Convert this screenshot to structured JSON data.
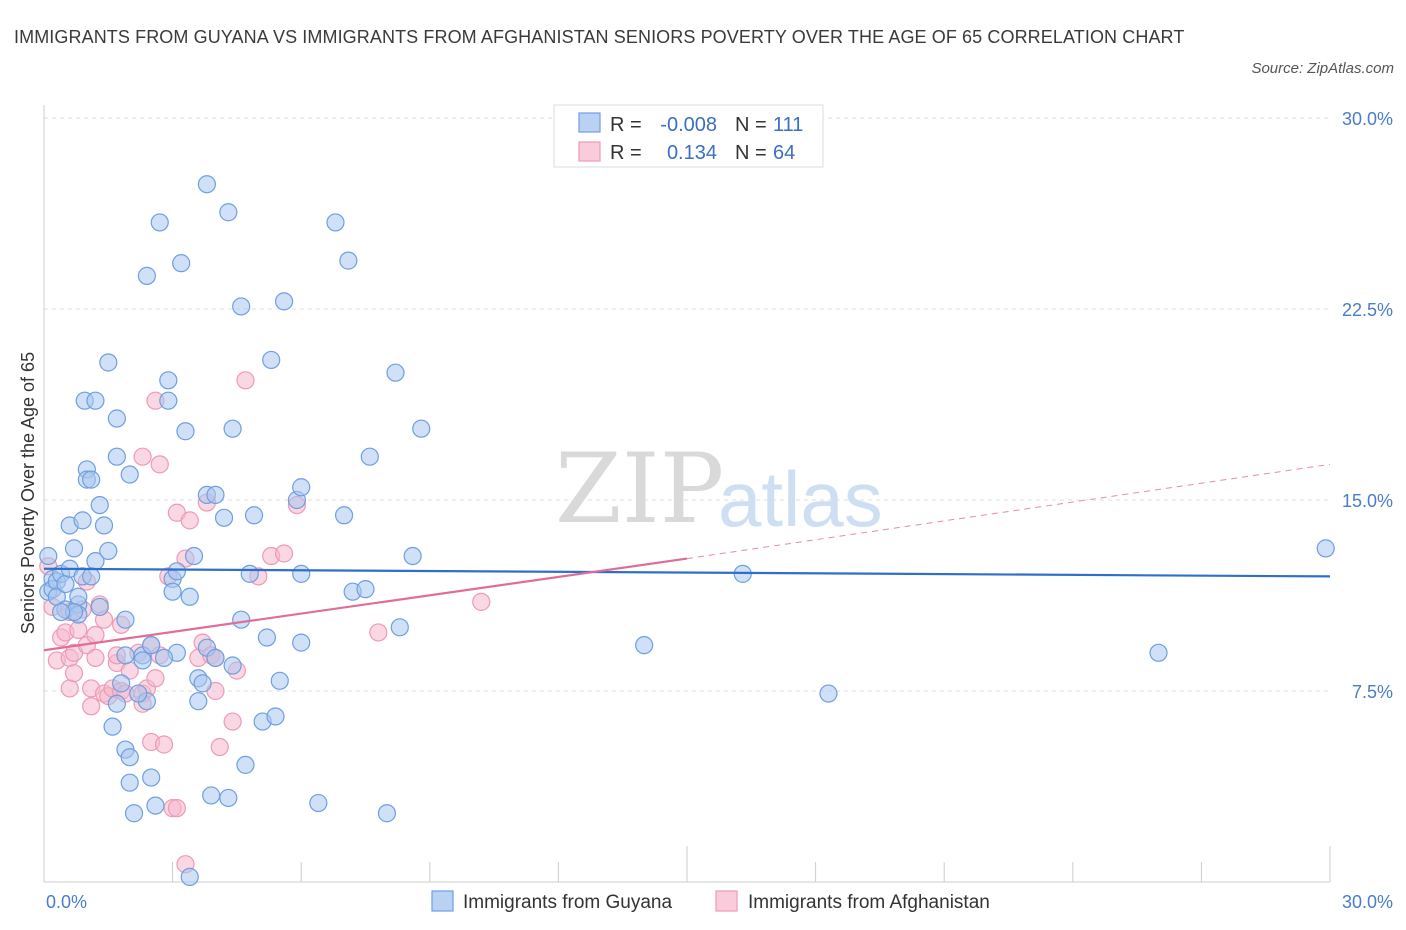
{
  "title": "IMMIGRANTS FROM GUYANA VS IMMIGRANTS FROM AFGHANISTAN SENIORS POVERTY OVER THE AGE OF 65 CORRELATION CHART",
  "source": "Source: ZipAtlas.com",
  "watermark": {
    "zip": "ZIP",
    "atlas": "atlas"
  },
  "legend": {
    "guyana": {
      "r_label": "R =",
      "r_value": "-0.008",
      "n_label": "N =",
      "n_value": "111"
    },
    "afghanistan": {
      "r_label": "R =",
      "r_value": "0.134",
      "n_label": "N =",
      "n_value": "64"
    }
  },
  "bottom_legend": {
    "guyana": "Immigrants from Guyana",
    "afghanistan": "Immigrants from Afghanistan"
  },
  "colors": {
    "guyana_fill": "#a9c6ef",
    "guyana_stroke": "#6e9fe0",
    "guyana_line": "#2f6fcc",
    "afghanistan_fill": "#f5b8cc",
    "afghanistan_stroke": "#ee9ab5",
    "afghanistan_line": "#e06d97",
    "grid": "#dddddd",
    "tick_text": "#4a7cc9"
  },
  "chart_data": {
    "type": "scatter",
    "title": "IMMIGRANTS FROM GUYANA VS IMMIGRANTS FROM AFGHANISTAN SENIORS POVERTY OVER THE AGE OF 65 CORRELATION CHART",
    "xlabel": "",
    "ylabel": "Seniors Poverty Over the Age of 65",
    "xlim": [
      0,
      30
    ],
    "ylim": [
      0,
      30
    ],
    "x_tick_labels": [
      "0.0%",
      "30.0%"
    ],
    "y_ticks": [
      7.5,
      15.0,
      22.5,
      30.0
    ],
    "y_tick_labels": [
      "7.5%",
      "15.0%",
      "22.5%",
      "30.0%"
    ],
    "grid": true,
    "legend_position": "top-center",
    "series": [
      {
        "name": "Immigrants from Guyana",
        "trend": {
          "x": [
            0,
            30
          ],
          "y": [
            12.3,
            12.0
          ],
          "style": "solid"
        },
        "points": [
          [
            0.1,
            12.8
          ],
          [
            0.1,
            11.4
          ],
          [
            0.2,
            11.9
          ],
          [
            0.2,
            11.5
          ],
          [
            0.3,
            11.8
          ],
          [
            0.3,
            11.2
          ],
          [
            0.4,
            12.1
          ],
          [
            0.5,
            10.7
          ],
          [
            0.5,
            11.7
          ],
          [
            0.6,
            14.0
          ],
          [
            0.6,
            12.3
          ],
          [
            0.7,
            13.1
          ],
          [
            0.8,
            10.9
          ],
          [
            0.8,
            10.5
          ],
          [
            0.8,
            11.2
          ],
          [
            0.9,
            14.2
          ],
          [
            0.9,
            12.0
          ],
          [
            0.95,
            18.9
          ],
          [
            1.0,
            16.2
          ],
          [
            1.0,
            15.8
          ],
          [
            1.1,
            15.8
          ],
          [
            1.2,
            18.9
          ],
          [
            1.2,
            12.6
          ],
          [
            1.3,
            14.8
          ],
          [
            1.4,
            14.0
          ],
          [
            1.5,
            13.0
          ],
          [
            1.5,
            20.4
          ],
          [
            1.7,
            16.7
          ],
          [
            1.7,
            18.2
          ],
          [
            1.9,
            10.3
          ],
          [
            2.0,
            16.0
          ],
          [
            1.8,
            7.8
          ],
          [
            1.9,
            5.2
          ],
          [
            2.0,
            4.9
          ],
          [
            2.0,
            3.9
          ],
          [
            2.1,
            2.7
          ],
          [
            1.9,
            8.9
          ],
          [
            1.7,
            7.0
          ],
          [
            1.6,
            6.1
          ],
          [
            2.3,
            8.9
          ],
          [
            2.3,
            8.7
          ],
          [
            2.4,
            7.1
          ],
          [
            2.5,
            9.3
          ],
          [
            2.4,
            23.8
          ],
          [
            2.5,
            4.1
          ],
          [
            2.6,
            3.0
          ],
          [
            2.7,
            25.9
          ],
          [
            2.9,
            19.7
          ],
          [
            2.9,
            18.9
          ],
          [
            3.0,
            11.9
          ],
          [
            3.0,
            11.4
          ],
          [
            3.1,
            12.2
          ],
          [
            3.2,
            24.3
          ],
          [
            3.4,
            11.2
          ],
          [
            3.3,
            17.7
          ],
          [
            3.4,
            0.2
          ],
          [
            3.5,
            12.8
          ],
          [
            3.6,
            8.0
          ],
          [
            3.6,
            7.1
          ],
          [
            3.7,
            7.8
          ],
          [
            3.8,
            15.2
          ],
          [
            3.8,
            9.2
          ],
          [
            3.9,
            3.4
          ],
          [
            4.0,
            8.8
          ],
          [
            4.0,
            15.2
          ],
          [
            3.8,
            27.4
          ],
          [
            4.2,
            14.3
          ],
          [
            4.3,
            26.3
          ],
          [
            4.3,
            3.3
          ],
          [
            4.4,
            8.5
          ],
          [
            4.4,
            17.8
          ],
          [
            4.6,
            22.6
          ],
          [
            4.6,
            10.3
          ],
          [
            4.7,
            4.6
          ],
          [
            4.8,
            12.1
          ],
          [
            4.9,
            14.4
          ],
          [
            5.1,
            6.3
          ],
          [
            5.2,
            9.6
          ],
          [
            5.3,
            20.5
          ],
          [
            5.4,
            6.5
          ],
          [
            5.5,
            7.9
          ],
          [
            5.6,
            22.8
          ],
          [
            5.9,
            15.0
          ],
          [
            6.0,
            15.5
          ],
          [
            6.0,
            9.4
          ],
          [
            6.0,
            12.1
          ],
          [
            6.8,
            25.9
          ],
          [
            6.4,
            3.1
          ],
          [
            7.0,
            14.4
          ],
          [
            7.1,
            24.4
          ],
          [
            7.2,
            11.4
          ],
          [
            7.5,
            11.5
          ],
          [
            7.6,
            16.7
          ],
          [
            8.0,
            2.7
          ],
          [
            8.2,
            20.0
          ],
          [
            8.3,
            10.0
          ],
          [
            8.6,
            12.8
          ],
          [
            8.8,
            17.8
          ],
          [
            14.0,
            9.3
          ],
          [
            16.3,
            12.1
          ],
          [
            18.3,
            7.4
          ],
          [
            26.0,
            9.0
          ],
          [
            29.9,
            13.1
          ],
          [
            0.7,
            10.6
          ],
          [
            1.3,
            10.8
          ],
          [
            2.2,
            7.4
          ],
          [
            1.1,
            12.0
          ],
          [
            3.1,
            9.0
          ],
          [
            2.8,
            8.8
          ],
          [
            0.4,
            10.6
          ]
        ]
      },
      {
        "name": "Immigrants from Afghanistan",
        "trend": {
          "x": [
            0,
            15.0
          ],
          "y": [
            9.1,
            12.7
          ],
          "style": "solid",
          "extension": {
            "x": [
              15.0,
              30
            ],
            "y": [
              12.7,
              16.4
            ],
            "style": "dashed"
          }
        },
        "points": [
          [
            0.1,
            12.4
          ],
          [
            0.2,
            10.8
          ],
          [
            0.3,
            8.7
          ],
          [
            0.4,
            9.6
          ],
          [
            0.5,
            9.8
          ],
          [
            0.6,
            10.6
          ],
          [
            0.6,
            8.8
          ],
          [
            0.6,
            7.6
          ],
          [
            0.7,
            8.2
          ],
          [
            0.7,
            9.0
          ],
          [
            0.8,
            9.9
          ],
          [
            0.9,
            10.7
          ],
          [
            1.0,
            9.3
          ],
          [
            1.0,
            11.8
          ],
          [
            1.1,
            7.6
          ],
          [
            1.1,
            6.9
          ],
          [
            1.2,
            8.8
          ],
          [
            1.2,
            9.7
          ],
          [
            1.3,
            10.9
          ],
          [
            1.4,
            10.3
          ],
          [
            1.4,
            7.4
          ],
          [
            1.5,
            7.3
          ],
          [
            1.6,
            7.6
          ],
          [
            1.7,
            8.6
          ],
          [
            1.7,
            8.9
          ],
          [
            1.8,
            10.1
          ],
          [
            1.8,
            7.5
          ],
          [
            1.9,
            7.4
          ],
          [
            2.0,
            8.3
          ],
          [
            2.2,
            9.0
          ],
          [
            2.3,
            7.4
          ],
          [
            2.3,
            7.0
          ],
          [
            2.3,
            16.7
          ],
          [
            2.4,
            7.6
          ],
          [
            2.5,
            5.5
          ],
          [
            2.5,
            9.3
          ],
          [
            2.6,
            18.9
          ],
          [
            2.6,
            8.0
          ],
          [
            2.7,
            16.4
          ],
          [
            2.7,
            8.9
          ],
          [
            2.8,
            5.4
          ],
          [
            2.9,
            12.0
          ],
          [
            3.0,
            2.9
          ],
          [
            3.1,
            2.9
          ],
          [
            3.1,
            14.5
          ],
          [
            3.3,
            0.7
          ],
          [
            3.3,
            12.7
          ],
          [
            3.4,
            14.2
          ],
          [
            3.6,
            8.8
          ],
          [
            3.7,
            9.4
          ],
          [
            3.8,
            14.9
          ],
          [
            3.9,
            8.9
          ],
          [
            4.0,
            7.5
          ],
          [
            4.0,
            8.8
          ],
          [
            4.1,
            5.3
          ],
          [
            4.4,
            6.3
          ],
          [
            4.5,
            8.3
          ],
          [
            4.7,
            19.7
          ],
          [
            5.0,
            12.0
          ],
          [
            5.3,
            12.8
          ],
          [
            5.6,
            12.9
          ],
          [
            5.9,
            14.8
          ],
          [
            7.8,
            9.8
          ],
          [
            10.2,
            11.0
          ]
        ]
      }
    ]
  }
}
